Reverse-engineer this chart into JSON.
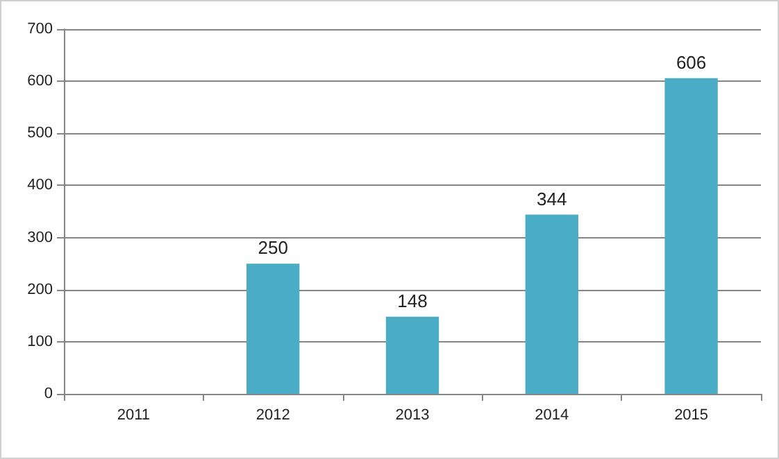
{
  "chart_data": {
    "type": "bar",
    "categories": [
      "2011",
      "2012",
      "2013",
      "2014",
      "2015"
    ],
    "values": [
      null,
      250,
      148,
      344,
      606
    ],
    "color": "#4bacc6",
    "ylim": [
      0,
      700
    ],
    "yticks": [
      0,
      100,
      200,
      300,
      400,
      500,
      600,
      700
    ],
    "grid": "y",
    "data_labels": true
  }
}
